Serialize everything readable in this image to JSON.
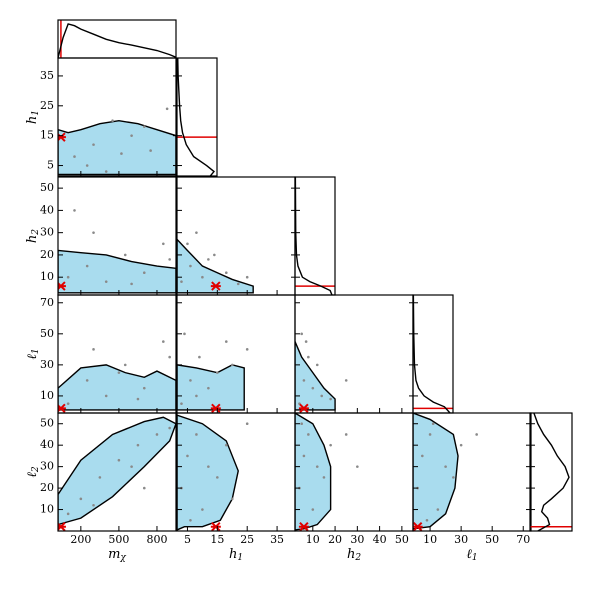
{
  "chart_data": {
    "type": "corner",
    "point_color": "#8a8a8a",
    "region_color": "#a9dcee",
    "truth_color": "#e00000",
    "density_lim": [
      0,
      1
    ],
    "variables": [
      {
        "label": "m",
        "sub": "χ",
        "lim": [
          20,
          950
        ],
        "ticks": [
          200,
          500,
          800
        ],
        "true_value": 43,
        "marginal_x": [
          20,
          60,
          100,
          150,
          200,
          300,
          400,
          500,
          600,
          700,
          800,
          900,
          950
        ],
        "marginal_density": [
          0,
          0.6,
          1,
          0.95,
          0.85,
          0.7,
          0.55,
          0.45,
          0.38,
          0.3,
          0.22,
          0.1,
          0.02
        ]
      },
      {
        "label": "h",
        "sub": "1",
        "lim": [
          1.5,
          41
        ],
        "ticks": [
          5,
          15,
          25,
          35
        ],
        "true_value": 14.5,
        "marginal_x": [
          1.5,
          3,
          5,
          8,
          12,
          16,
          20,
          25,
          30,
          35,
          41
        ],
        "marginal_density": [
          0.9,
          1,
          0.8,
          0.45,
          0.25,
          0.15,
          0.1,
          0.07,
          0.05,
          0.03,
          0.02
        ]
      },
      {
        "label": "h",
        "sub": "2",
        "lim": [
          2,
          55
        ],
        "ticks": [
          10,
          20,
          30,
          40,
          50
        ],
        "true_value": 6,
        "marginal_x": [
          2,
          4,
          6,
          8,
          10,
          15,
          20,
          30,
          55
        ],
        "marginal_density": [
          1,
          0.95,
          0.7,
          0.4,
          0.2,
          0.08,
          0.04,
          0.02,
          0.01
        ]
      },
      {
        "label": "ℓ",
        "sub": "1",
        "lim": [
          -1,
          75
        ],
        "ticks": [
          10,
          30,
          50,
          70
        ],
        "true_value": 2,
        "marginal_x": [
          -1,
          3,
          6,
          10,
          15,
          20,
          30,
          50,
          75
        ],
        "marginal_density": [
          1,
          0.85,
          0.55,
          0.3,
          0.15,
          0.08,
          0.04,
          0.02,
          0.01
        ]
      },
      {
        "label": "ℓ",
        "sub": "2",
        "lim": [
          0,
          55
        ],
        "ticks": [
          10,
          20,
          30,
          40,
          50
        ],
        "true_value": 2,
        "marginal_x": [
          0,
          3,
          6,
          9,
          12,
          15,
          20,
          25,
          30,
          35,
          40,
          45,
          50,
          55
        ],
        "marginal_density": [
          0.2,
          0.5,
          0.45,
          0.3,
          0.35,
          0.55,
          0.85,
          1,
          0.9,
          0.7,
          0.55,
          0.35,
          0.2,
          0.1
        ]
      }
    ],
    "panels": [
      [
        {
          "x": [
            150,
            300,
            450,
            600,
            750,
            880,
            250,
            520,
            700,
            400
          ],
          "y": [
            8,
            12,
            20,
            15,
            10,
            24,
            5,
            9,
            18,
            3
          ],
          "region_x": [
            20,
            100,
            200,
            350,
            500,
            650,
            800,
            950,
            950,
            700,
            400,
            150,
            20
          ],
          "region_y": [
            17,
            16,
            17,
            19,
            20,
            19,
            17,
            15,
            2,
            2,
            2,
            2,
            2
          ]
        }
      ],
      [
        {
          "x": [
            100,
            250,
            400,
            550,
            700,
            850,
            300,
            600,
            900,
            150
          ],
          "y": [
            10,
            15,
            8,
            20,
            12,
            25,
            30,
            7,
            18,
            40
          ],
          "region_x": [
            20,
            200,
            400,
            600,
            800,
            950,
            950,
            20
          ],
          "region_y": [
            22,
            21,
            20,
            17,
            15,
            14,
            3,
            3
          ]
        },
        {
          "x": [
            3,
            6,
            10,
            14,
            18,
            22,
            8,
            12,
            5,
            25
          ],
          "y": [
            8,
            15,
            10,
            20,
            12,
            7,
            30,
            18,
            25,
            10
          ],
          "region_x": [
            1.5,
            5,
            10,
            15,
            20,
            27,
            27,
            1.5
          ],
          "region_y": [
            27,
            22,
            15,
            12,
            9,
            6,
            3,
            3
          ]
        }
      ],
      [
        {
          "x": [
            100,
            250,
            400,
            550,
            700,
            850,
            300,
            650,
            500,
            900
          ],
          "y": [
            5,
            20,
            10,
            30,
            15,
            45,
            40,
            8,
            25,
            35
          ],
          "region_x": [
            20,
            200,
            400,
            550,
            700,
            800,
            950,
            950,
            20
          ],
          "region_y": [
            15,
            28,
            30,
            25,
            22,
            26,
            20,
            1,
            1
          ]
        },
        {
          "x": [
            3,
            6,
            9,
            12,
            15,
            18,
            8,
            20,
            4,
            25
          ],
          "y": [
            5,
            20,
            35,
            15,
            25,
            45,
            10,
            30,
            50,
            40
          ],
          "region_x": [
            1.5,
            8,
            15,
            20,
            24,
            24,
            1.5
          ],
          "region_y": [
            30,
            28,
            25,
            30,
            28,
            1,
            1
          ]
        },
        {
          "x": [
            4,
            6,
            8,
            10,
            14,
            18,
            5,
            12,
            25,
            7
          ],
          "y": [
            5,
            20,
            35,
            15,
            10,
            8,
            50,
            30,
            20,
            45
          ],
          "region_x": [
            2,
            5,
            10,
            15,
            20,
            20,
            2
          ],
          "region_y": [
            45,
            35,
            25,
            15,
            8,
            1,
            1
          ]
        }
      ],
      [
        {
          "x": [
            100,
            200,
            350,
            500,
            650,
            800,
            900,
            300,
            600,
            700
          ],
          "y": [
            8,
            15,
            25,
            33,
            40,
            45,
            48,
            12,
            30,
            20
          ],
          "region_x": [
            20,
            200,
            450,
            700,
            850,
            950,
            900,
            700,
            450,
            200,
            20
          ],
          "region_y": [
            17,
            33,
            45,
            51,
            53,
            50,
            42,
            30,
            16,
            6,
            3
          ]
        },
        {
          "x": [
            3,
            5,
            8,
            10,
            12,
            15,
            18,
            20,
            6,
            25
          ],
          "y": [
            20,
            35,
            45,
            10,
            30,
            25,
            40,
            15,
            5,
            50
          ],
          "region_x": [
            1.5,
            10,
            18,
            22,
            20,
            16,
            10,
            4,
            1.5
          ],
          "region_y": [
            54,
            50,
            42,
            28,
            15,
            5,
            2,
            2,
            0.5
          ]
        },
        {
          "x": [
            4,
            6,
            8,
            10,
            12,
            15,
            18,
            25,
            30,
            5
          ],
          "y": [
            20,
            35,
            45,
            10,
            30,
            25,
            40,
            45,
            30,
            50
          ],
          "region_x": [
            2,
            10,
            15,
            18,
            18,
            12,
            6,
            2
          ],
          "region_y": [
            55,
            50,
            40,
            30,
            10,
            3,
            1,
            0.5
          ]
        },
        {
          "x": [
            2,
            5,
            10,
            15,
            20,
            25,
            8,
            30,
            40,
            12
          ],
          "y": [
            20,
            35,
            45,
            10,
            30,
            25,
            5,
            40,
            45,
            50
          ],
          "region_x": [
            -1,
            10,
            25,
            28,
            26,
            20,
            10,
            -1
          ],
          "region_y": [
            55,
            52,
            45,
            35,
            20,
            8,
            2,
            1
          ]
        }
      ]
    ]
  }
}
